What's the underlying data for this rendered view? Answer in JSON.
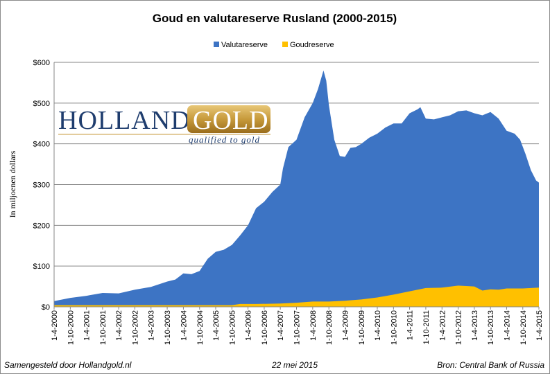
{
  "chart_data": {
    "type": "area",
    "title": "Goud en valutareserve Rusland (2000-2015)",
    "ylabel": "In miljoenen dollars",
    "xlabel": "",
    "ylim": [
      0,
      600
    ],
    "y_ticks": [
      "$0",
      "$100",
      "$200",
      "$300",
      "$400",
      "$500",
      "$600"
    ],
    "grid": true,
    "legend_position": "top",
    "x_ticks": [
      "1-4-2000",
      "1-10-2000",
      "1-4-2001",
      "1-10-2001",
      "1-4-2002",
      "1-10-2002",
      "1-4-2003",
      "1-10-2003",
      "1-4-2004",
      "1-10-2004",
      "1-4-2005",
      "1-10-2005",
      "1-4-2006",
      "1-10-2006",
      "1-4-2007",
      "1-10-2007",
      "1-4-2008",
      "1-10-2008",
      "1-4-2009",
      "1-10-2009",
      "1-4-2010",
      "1-10-2010",
      "1-4-2011",
      "1-10-2011",
      "1-4-2012",
      "1-10-2012",
      "1-4-2013",
      "1-10-2013",
      "1-4-2014",
      "1-10-2014",
      "1-4-2015"
    ],
    "series": [
      {
        "name": "Valutareserve",
        "color": "#3d74c4",
        "points": [
          [
            "2000-04-01",
            14
          ],
          [
            "2000-10-01",
            22
          ],
          [
            "2001-04-01",
            27
          ],
          [
            "2001-10-01",
            34
          ],
          [
            "2002-04-01",
            33
          ],
          [
            "2002-10-01",
            42
          ],
          [
            "2003-04-01",
            49
          ],
          [
            "2003-10-01",
            62
          ],
          [
            "2004-01-01",
            67
          ],
          [
            "2004-04-01",
            82
          ],
          [
            "2004-07-01",
            80
          ],
          [
            "2004-10-01",
            88
          ],
          [
            "2005-01-01",
            118
          ],
          [
            "2005-04-01",
            135
          ],
          [
            "2005-07-01",
            140
          ],
          [
            "2005-10-01",
            152
          ],
          [
            "2006-01-01",
            175
          ],
          [
            "2006-04-01",
            200
          ],
          [
            "2006-07-01",
            242
          ],
          [
            "2006-10-01",
            258
          ],
          [
            "2007-01-01",
            282
          ],
          [
            "2007-04-01",
            300
          ],
          [
            "2007-05-01",
            340
          ],
          [
            "2007-07-01",
            392
          ],
          [
            "2007-10-01",
            410
          ],
          [
            "2008-01-01",
            465
          ],
          [
            "2008-04-01",
            500
          ],
          [
            "2008-06-01",
            535
          ],
          [
            "2008-08-01",
            580
          ],
          [
            "2008-09-01",
            555
          ],
          [
            "2008-10-01",
            495
          ],
          [
            "2008-12-01",
            410
          ],
          [
            "2009-02-01",
            370
          ],
          [
            "2009-04-01",
            368
          ],
          [
            "2009-06-01",
            390
          ],
          [
            "2009-08-01",
            392
          ],
          [
            "2009-10-01",
            400
          ],
          [
            "2010-01-01",
            415
          ],
          [
            "2010-04-01",
            425
          ],
          [
            "2010-07-01",
            440
          ],
          [
            "2010-10-01",
            450
          ],
          [
            "2011-01-01",
            450
          ],
          [
            "2011-04-01",
            475
          ],
          [
            "2011-07-01",
            485
          ],
          [
            "2011-08-01",
            490
          ],
          [
            "2011-10-01",
            462
          ],
          [
            "2012-01-01",
            460
          ],
          [
            "2012-04-01",
            465
          ],
          [
            "2012-07-01",
            470
          ],
          [
            "2012-10-01",
            480
          ],
          [
            "2013-01-01",
            482
          ],
          [
            "2013-04-01",
            475
          ],
          [
            "2013-07-01",
            470
          ],
          [
            "2013-10-01",
            478
          ],
          [
            "2014-01-01",
            462
          ],
          [
            "2014-04-01",
            432
          ],
          [
            "2014-07-01",
            425
          ],
          [
            "2014-09-01",
            410
          ],
          [
            "2014-11-01",
            375
          ],
          [
            "2015-01-01",
            335
          ],
          [
            "2015-03-01",
            310
          ],
          [
            "2015-04-01",
            305
          ]
        ]
      },
      {
        "name": "Goudreserve",
        "color": "#ffc000",
        "points": [
          [
            "2000-04-01",
            4
          ],
          [
            "2001-04-01",
            4
          ],
          [
            "2002-04-01",
            4
          ],
          [
            "2003-04-01",
            4
          ],
          [
            "2004-04-01",
            4
          ],
          [
            "2005-04-01",
            4
          ],
          [
            "2005-10-01",
            4
          ],
          [
            "2006-01-01",
            7
          ],
          [
            "2006-07-01",
            7
          ],
          [
            "2007-04-01",
            8
          ],
          [
            "2007-10-01",
            10
          ],
          [
            "2008-04-01",
            13
          ],
          [
            "2008-10-01",
            13
          ],
          [
            "2009-04-01",
            15
          ],
          [
            "2009-10-01",
            18
          ],
          [
            "2010-04-01",
            23
          ],
          [
            "2010-10-01",
            30
          ],
          [
            "2011-04-01",
            38
          ],
          [
            "2011-10-01",
            46
          ],
          [
            "2012-04-01",
            47
          ],
          [
            "2012-10-01",
            52
          ],
          [
            "2013-04-01",
            50
          ],
          [
            "2013-07-01",
            40
          ],
          [
            "2013-10-01",
            43
          ],
          [
            "2014-01-01",
            42
          ],
          [
            "2014-04-01",
            45
          ],
          [
            "2014-10-01",
            45
          ],
          [
            "2015-01-01",
            46
          ],
          [
            "2015-04-01",
            47
          ]
        ]
      }
    ]
  },
  "logo": {
    "text_left": "HOLLAND",
    "text_right": "GOLD",
    "tagline": "qualified to gold"
  },
  "footer": {
    "left": "Samengesteld door Hollandgold.nl",
    "center": "22 mei 2015",
    "right": "Bron: Central Bank of Russia"
  }
}
